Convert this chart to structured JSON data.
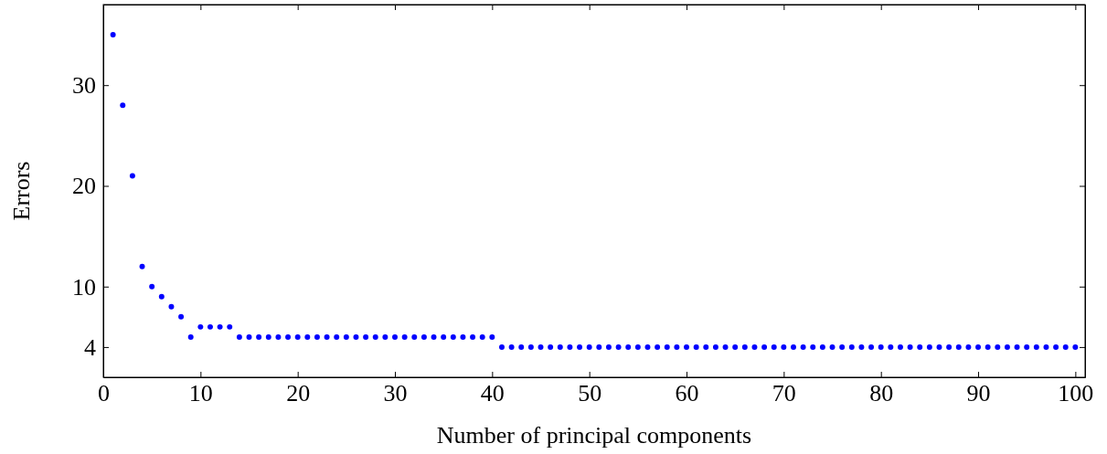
{
  "chart_data": {
    "type": "scatter",
    "xlabel": "Number of principal components",
    "ylabel": "Errors",
    "x": [
      1,
      2,
      3,
      4,
      5,
      6,
      7,
      8,
      9,
      10,
      11,
      12,
      13,
      14,
      15,
      16,
      17,
      18,
      19,
      20,
      21,
      22,
      23,
      24,
      25,
      26,
      27,
      28,
      29,
      30,
      31,
      32,
      33,
      34,
      35,
      36,
      37,
      38,
      39,
      40,
      41,
      42,
      43,
      44,
      45,
      46,
      47,
      48,
      49,
      50,
      51,
      52,
      53,
      54,
      55,
      56,
      57,
      58,
      59,
      60,
      61,
      62,
      63,
      64,
      65,
      66,
      67,
      68,
      69,
      70,
      71,
      72,
      73,
      74,
      75,
      76,
      77,
      78,
      79,
      80,
      81,
      82,
      83,
      84,
      85,
      86,
      87,
      88,
      89,
      90,
      91,
      92,
      93,
      94,
      95,
      96,
      97,
      98,
      99,
      100
    ],
    "series": [
      {
        "color": "#0000ff",
        "values": [
          35,
          28,
          21,
          12,
          10,
          9,
          8,
          7,
          5,
          6,
          6,
          6,
          6,
          5,
          5,
          5,
          5,
          5,
          5,
          5,
          5,
          5,
          5,
          5,
          5,
          5,
          5,
          5,
          5,
          5,
          5,
          5,
          5,
          5,
          5,
          5,
          5,
          5,
          5,
          5,
          4,
          4,
          4,
          4,
          4,
          4,
          4,
          4,
          4,
          4,
          4,
          4,
          4,
          4,
          4,
          4,
          4,
          4,
          4,
          4,
          4,
          4,
          4,
          4,
          4,
          4,
          4,
          4,
          4,
          4,
          4,
          4,
          4,
          4,
          4,
          4,
          4,
          4,
          4,
          4,
          4,
          4,
          4,
          4,
          4,
          4,
          4,
          4,
          4,
          4,
          4,
          4,
          4,
          4,
          4,
          4,
          4,
          4,
          4,
          4
        ]
      }
    ],
    "xlim": [
      0,
      101
    ],
    "ylim": [
      1,
      38
    ],
    "xticks": [
      0,
      10,
      20,
      30,
      40,
      50,
      60,
      70,
      80,
      90,
      100
    ],
    "yticks": [
      4,
      10,
      20,
      30
    ],
    "marker": "circle",
    "grid": false
  }
}
